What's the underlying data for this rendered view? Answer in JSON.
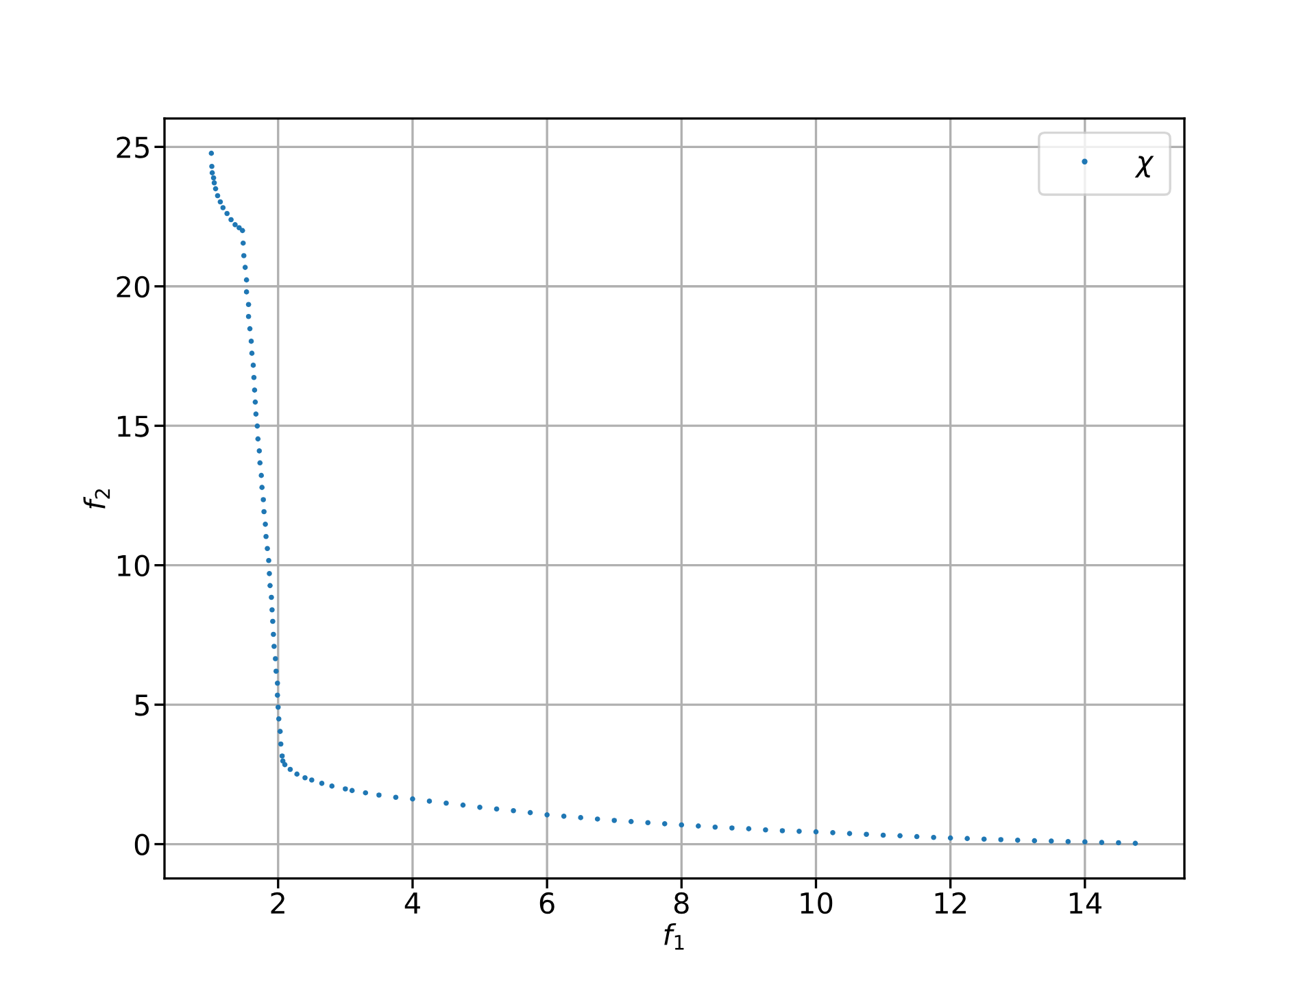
{
  "chart_data": {
    "type": "scatter",
    "xlabel": "f$_{1}$",
    "ylabel": "f$_{2}$",
    "xlim": [
      0.31,
      15.48
    ],
    "ylim": [
      -1.23,
      26.02
    ],
    "xticks": [
      2,
      4,
      6,
      8,
      10,
      12,
      14
    ],
    "yticks": [
      0,
      5,
      10,
      15,
      20,
      25
    ],
    "grid": true,
    "legend": "top right",
    "marker": "circle",
    "series": [
      {
        "name": "χ",
        "color": "#1f77b4",
        "x": [
          1.007,
          1.014,
          1.02,
          1.04,
          1.05,
          1.07,
          1.1,
          1.14,
          1.18,
          1.24,
          1.3,
          1.36,
          1.42,
          1.47,
          1.48,
          1.49,
          1.51,
          1.53,
          1.53,
          1.56,
          1.56,
          1.58,
          1.6,
          1.61,
          1.63,
          1.64,
          1.65,
          1.66,
          1.67,
          1.69,
          1.7,
          1.72,
          1.73,
          1.75,
          1.76,
          1.78,
          1.79,
          1.81,
          1.82,
          1.84,
          1.86,
          1.87,
          1.88,
          1.9,
          1.91,
          1.92,
          1.93,
          1.94,
          1.96,
          1.97,
          1.99,
          1.99,
          2.0,
          2.01,
          2.03,
          2.04,
          2.06,
          2.07,
          2.1,
          2.18,
          2.28,
          2.4,
          2.5,
          2.65,
          2.8,
          3.0,
          3.1,
          3.3,
          3.5,
          3.75,
          4.0,
          4.25,
          4.5,
          4.75,
          5.0,
          5.25,
          5.5,
          5.75,
          6.0,
          6.25,
          6.5,
          6.75,
          7.0,
          7.25,
          7.5,
          7.75,
          8.0,
          8.25,
          8.5,
          8.75,
          9.0,
          9.25,
          9.5,
          9.75,
          10.0,
          10.25,
          10.5,
          10.75,
          11.0,
          11.25,
          11.5,
          11.75,
          12.0,
          12.25,
          12.5,
          12.75,
          13.0,
          13.25,
          13.5,
          13.75,
          14.0,
          14.25,
          14.5,
          14.75
        ],
        "values": [
          24.77,
          24.3,
          24.07,
          23.89,
          23.71,
          23.5,
          23.25,
          23.03,
          22.82,
          22.61,
          22.39,
          22.21,
          22.1,
          22.0,
          21.55,
          21.1,
          20.68,
          20.23,
          19.8,
          19.35,
          18.92,
          18.48,
          18.03,
          17.6,
          17.17,
          16.73,
          16.28,
          15.85,
          15.42,
          14.99,
          14.53,
          14.1,
          13.67,
          13.22,
          12.79,
          12.35,
          11.92,
          11.47,
          11.03,
          10.6,
          10.17,
          9.7,
          9.27,
          8.85,
          8.4,
          7.99,
          7.52,
          7.09,
          6.65,
          6.2,
          5.77,
          5.34,
          4.91,
          4.49,
          4.04,
          3.59,
          3.16,
          2.98,
          2.85,
          2.68,
          2.51,
          2.38,
          2.3,
          2.18,
          2.08,
          1.98,
          1.92,
          1.84,
          1.76,
          1.68,
          1.62,
          1.54,
          1.47,
          1.4,
          1.32,
          1.26,
          1.2,
          1.13,
          1.05,
          1.0,
          0.95,
          0.9,
          0.85,
          0.81,
          0.77,
          0.73,
          0.69,
          0.65,
          0.61,
          0.58,
          0.55,
          0.51,
          0.48,
          0.46,
          0.44,
          0.41,
          0.38,
          0.35,
          0.32,
          0.3,
          0.27,
          0.24,
          0.22,
          0.2,
          0.18,
          0.16,
          0.14,
          0.12,
          0.11,
          0.09,
          0.08,
          0.06,
          0.05,
          0.03
        ]
      }
    ]
  }
}
